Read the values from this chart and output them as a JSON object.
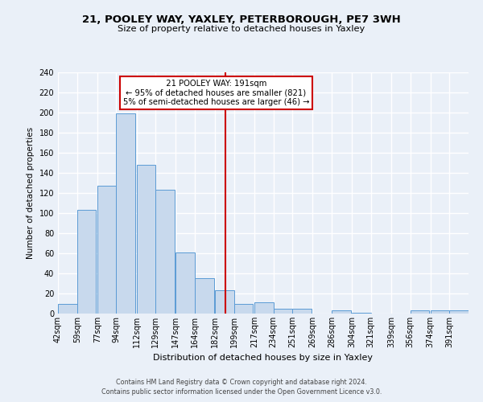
{
  "title": "21, POOLEY WAY, YAXLEY, PETERBOROUGH, PE7 3WH",
  "subtitle": "Size of property relative to detached houses in Yaxley",
  "xlabel": "Distribution of detached houses by size in Yaxley",
  "ylabel": "Number of detached properties",
  "bin_labels": [
    "42sqm",
    "59sqm",
    "77sqm",
    "94sqm",
    "112sqm",
    "129sqm",
    "147sqm",
    "164sqm",
    "182sqm",
    "199sqm",
    "217sqm",
    "234sqm",
    "251sqm",
    "269sqm",
    "286sqm",
    "304sqm",
    "321sqm",
    "339sqm",
    "356sqm",
    "374sqm",
    "391sqm"
  ],
  "bar_values": [
    10,
    103,
    127,
    199,
    148,
    123,
    61,
    35,
    23,
    10,
    11,
    5,
    5,
    0,
    3,
    1,
    0,
    0,
    3,
    3,
    3
  ],
  "bar_color": "#c8d9ed",
  "bar_edge_color": "#5b9bd5",
  "vline_x": 191,
  "vline_label": "21 POOLEY WAY: 191sqm",
  "annotation_line1": "← 95% of detached houses are smaller (821)",
  "annotation_line2": "5% of semi-detached houses are larger (46) →",
  "annotation_box_color": "#ffffff",
  "annotation_box_edge": "#cc0000",
  "vline_color": "#cc0000",
  "ylim": [
    0,
    240
  ],
  "bin_edges": [
    42,
    59,
    77,
    94,
    112,
    129,
    147,
    164,
    182,
    199,
    217,
    234,
    251,
    269,
    286,
    304,
    321,
    339,
    356,
    374,
    391
  ],
  "bin_width": 17,
  "footer_line1": "Contains HM Land Registry data © Crown copyright and database right 2024.",
  "footer_line2": "Contains public sector information licensed under the Open Government Licence v3.0.",
  "background_color": "#eaf0f8",
  "grid_color": "#ffffff",
  "yticks": [
    0,
    20,
    40,
    60,
    80,
    100,
    120,
    140,
    160,
    180,
    200,
    220,
    240
  ]
}
